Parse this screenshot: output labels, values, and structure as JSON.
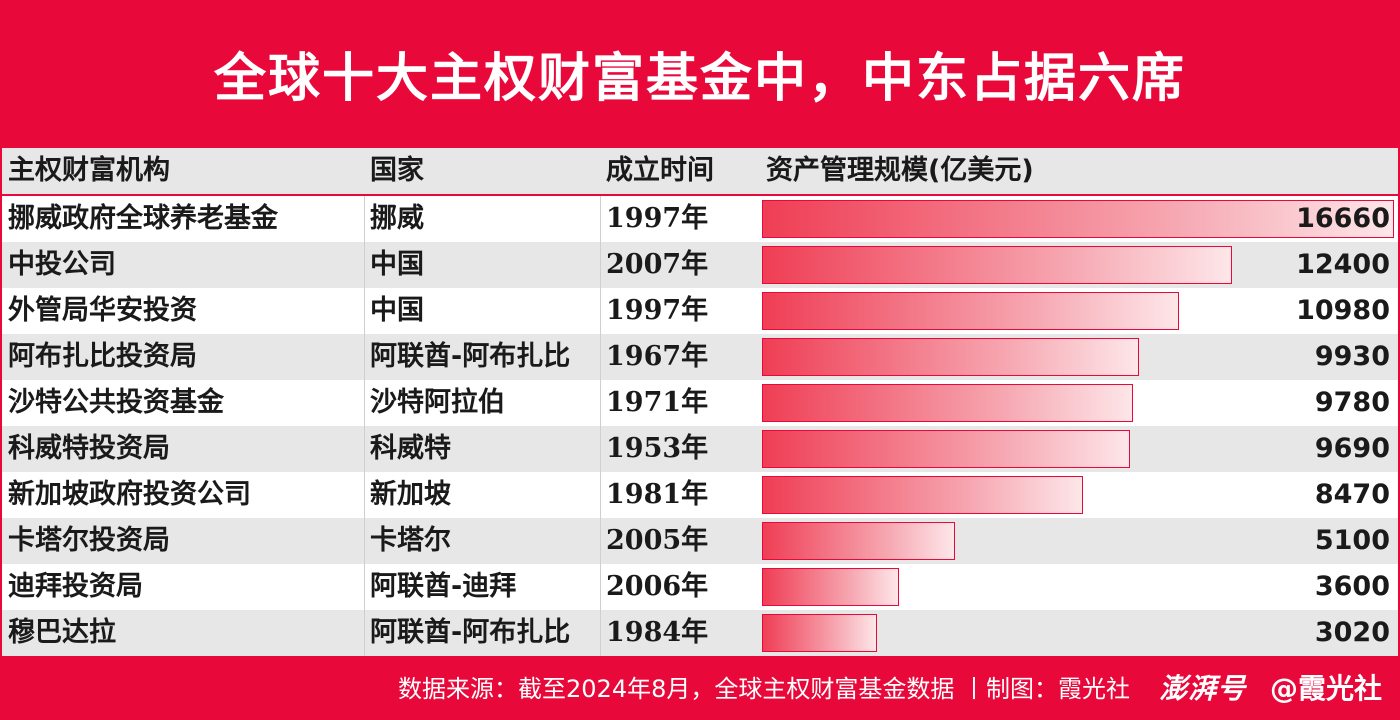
{
  "title": "全球十大主权财富基金中，中东占据六席",
  "columns": [
    "主权财富机构",
    "国家",
    "成立时间",
    "资产管理规模(亿美元)"
  ],
  "chart_data": {
    "type": "table",
    "unit": "亿美元",
    "rows": [
      {
        "name": "挪威政府全球养老基金",
        "country": "挪威",
        "founded": "1997年",
        "value": 16660
      },
      {
        "name": "中投公司",
        "country": "中国",
        "founded": "2007年",
        "value": 12400
      },
      {
        "name": "外管局华安投资",
        "country": "中国",
        "founded": "1997年",
        "value": 10980
      },
      {
        "name": "阿布扎比投资局",
        "country": "阿联酋-阿布扎比",
        "founded": "1967年",
        "value": 9930
      },
      {
        "name": "沙特公共投资基金",
        "country": "沙特阿拉伯",
        "founded": "1971年",
        "value": 9780
      },
      {
        "name": "科威特投资局",
        "country": "科威特",
        "founded": "1953年",
        "value": 9690
      },
      {
        "name": "新加坡政府投资公司",
        "country": "新加坡",
        "founded": "1981年",
        "value": 8470
      },
      {
        "name": "卡塔尔投资局",
        "country": "卡塔尔",
        "founded": "2005年",
        "value": 5100
      },
      {
        "name": "迪拜投资局",
        "country": "阿联酋-迪拜",
        "founded": "2006年",
        "value": 3600
      },
      {
        "name": "穆巴达拉",
        "country": "阿联酋-阿布扎比",
        "founded": "1984年",
        "value": 3020
      }
    ],
    "xlim": [
      0,
      16660
    ]
  },
  "footer": {
    "source": "数据来源：截至2024年8月，全球主权财富基金数据 丨制图：霞光社",
    "platform": "澎湃号",
    "account": "@霞光社"
  },
  "colors": {
    "accent": "#e8083a",
    "bar_start": "#ef3e55",
    "bar_end": "#fde6e9",
    "row_alt": "#e7e7e7"
  }
}
